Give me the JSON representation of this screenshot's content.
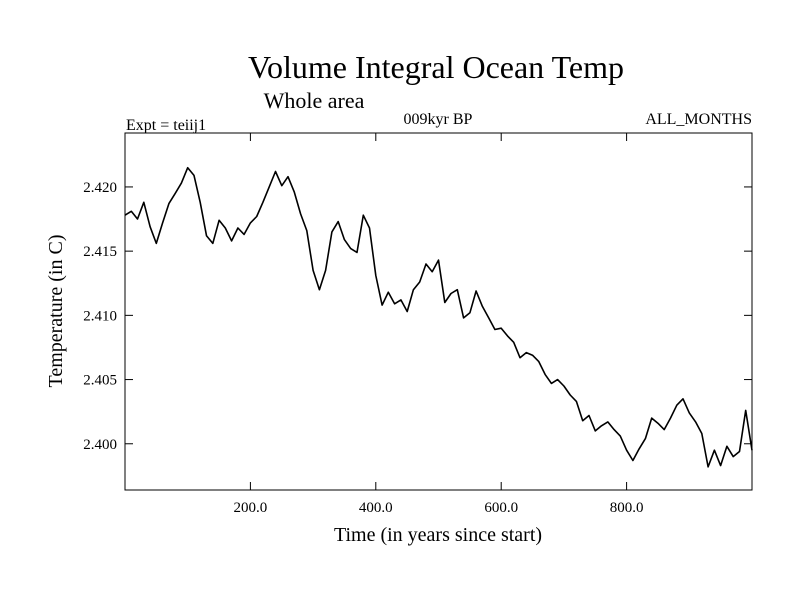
{
  "chart_data": {
    "type": "line",
    "title": "Volume Integral Ocean Temp",
    "subtitle": "Whole area",
    "annotations": {
      "left": "Expt = teiij1",
      "center": "009kyr BP",
      "right": "ALL_MONTHS"
    },
    "xlabel": "Time (in years since start)",
    "ylabel": "Temperature (in C)",
    "xlim": [
      0,
      1000
    ],
    "ylim": [
      2.3964,
      2.4242
    ],
    "xticks": [
      200,
      400,
      600,
      800
    ],
    "xtick_labels": [
      "200.0",
      "400.0",
      "600.0",
      "800.0"
    ],
    "yticks": [
      2.4,
      2.405,
      2.41,
      2.415,
      2.42
    ],
    "ytick_labels": [
      "2.400",
      "2.405",
      "2.410",
      "2.415",
      "2.420"
    ],
    "grid": false,
    "legend": "none",
    "line_color": "#000000",
    "series": [
      {
        "x": [
          0,
          10,
          20,
          30,
          40,
          50,
          60,
          70,
          80,
          90,
          100,
          110,
          120,
          130,
          140,
          150,
          160,
          170,
          180,
          190,
          200,
          210,
          220,
          230,
          240,
          250,
          260,
          270,
          280,
          290,
          300,
          310,
          320,
          330,
          340,
          350,
          360,
          370,
          380,
          390,
          400,
          410,
          420,
          430,
          440,
          450,
          460,
          470,
          480,
          490,
          500,
          510,
          520,
          530,
          540,
          550,
          560,
          570,
          580,
          590,
          600,
          610,
          620,
          630,
          640,
          650,
          660,
          670,
          680,
          690,
          700,
          710,
          720,
          730,
          740,
          750,
          760,
          770,
          780,
          790,
          800,
          810,
          820,
          830,
          840,
          850,
          860,
          870,
          880,
          890,
          900,
          910,
          920,
          930,
          940,
          950,
          960,
          970,
          980,
          990,
          1000
        ],
        "values": [
          2.4178,
          2.4181,
          2.4175,
          2.4188,
          2.4169,
          2.4156,
          2.4172,
          2.4187,
          2.4195,
          2.4203,
          2.4215,
          2.4209,
          2.4188,
          2.4162,
          2.4156,
          2.4174,
          2.4168,
          2.4158,
          2.4168,
          2.4163,
          2.4172,
          2.4177,
          2.4188,
          2.42,
          2.4212,
          2.4201,
          2.4208,
          2.4196,
          2.4179,
          2.4166,
          2.4135,
          2.412,
          2.4135,
          2.4165,
          2.4173,
          2.4159,
          2.4152,
          2.4149,
          2.4178,
          2.4168,
          2.4131,
          2.4108,
          2.4118,
          2.4109,
          2.4112,
          2.4103,
          2.412,
          2.4126,
          2.414,
          2.4134,
          2.4143,
          2.411,
          2.4117,
          2.412,
          2.4098,
          2.4102,
          2.4119,
          2.4107,
          2.4098,
          2.4089,
          2.409,
          2.4084,
          2.4079,
          2.4067,
          2.4071,
          2.4069,
          2.4064,
          2.4054,
          2.4047,
          2.405,
          2.4045,
          2.4038,
          2.4033,
          2.4018,
          2.4022,
          2.401,
          2.4014,
          2.4017,
          2.4011,
          2.4006,
          2.3995,
          2.3987,
          2.3996,
          2.4004,
          2.402,
          2.4016,
          2.4011,
          2.402,
          2.403,
          2.4035,
          2.4024,
          2.4017,
          2.4008,
          2.3982,
          2.3995,
          2.3983,
          2.3998,
          2.399,
          2.3994,
          2.4026,
          2.3995
        ]
      }
    ]
  }
}
